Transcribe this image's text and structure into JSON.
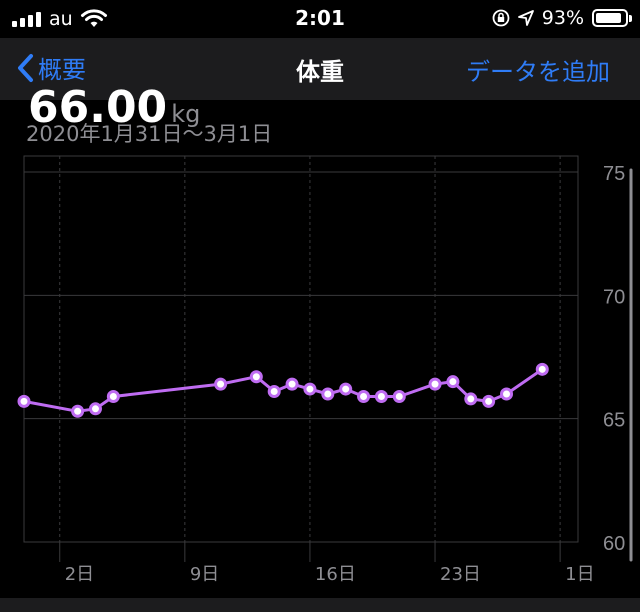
{
  "status_bar": {
    "carrier": "au",
    "time": "2:01",
    "battery_percent": "93%",
    "icons": [
      "signal-icon",
      "wifi-icon",
      "lock-rotation-icon",
      "location-icon",
      "battery-icon"
    ]
  },
  "nav": {
    "back_label": "概要",
    "title": "体重",
    "action_label": "データを追加"
  },
  "summary": {
    "value": "66.00",
    "unit": "kg",
    "date_range": "2020年1月31日〜3月1日"
  },
  "colors": {
    "accent": "#2f7cf6",
    "series": "#bf6cf2",
    "background": "#000000",
    "grid": "#3a3a3c",
    "secondary_text": "#8e8e93"
  },
  "chart_data": {
    "type": "line",
    "y_ticks": [
      "75",
      "70",
      "65",
      "60"
    ],
    "ylim": [
      60,
      75
    ],
    "x_range": [
      "2020-01-31",
      "2020-03-02"
    ],
    "x_tick_labels": [
      {
        "date": "2020-02-02",
        "label": "2日"
      },
      {
        "date": "2020-02-09",
        "label": "9日"
      },
      {
        "date": "2020-02-16",
        "label": "16日"
      },
      {
        "date": "2020-02-23",
        "label": "23日"
      },
      {
        "date": "2020-03-01",
        "label": "1日"
      }
    ],
    "grid": true,
    "series": [
      {
        "values": [
          {
            "date": "2020-01-31",
            "y": 65.7
          },
          {
            "date": "2020-02-03",
            "y": 65.3
          },
          {
            "date": "2020-02-04",
            "y": 65.4
          },
          {
            "date": "2020-02-05",
            "y": 65.9
          },
          {
            "date": "2020-02-11",
            "y": 66.4
          },
          {
            "date": "2020-02-13",
            "y": 66.7
          },
          {
            "date": "2020-02-14",
            "y": 66.1
          },
          {
            "date": "2020-02-15",
            "y": 66.4
          },
          {
            "date": "2020-02-16",
            "y": 66.2
          },
          {
            "date": "2020-02-17",
            "y": 66.0
          },
          {
            "date": "2020-02-18",
            "y": 66.2
          },
          {
            "date": "2020-02-19",
            "y": 65.9
          },
          {
            "date": "2020-02-20",
            "y": 65.9
          },
          {
            "date": "2020-02-21",
            "y": 65.9
          },
          {
            "date": "2020-02-23",
            "y": 66.4
          },
          {
            "date": "2020-02-24",
            "y": 66.5
          },
          {
            "date": "2020-02-25",
            "y": 65.8
          },
          {
            "date": "2020-02-26",
            "y": 65.7
          },
          {
            "date": "2020-02-27",
            "y": 66.0
          },
          {
            "date": "2020-02-29",
            "y": 67.0
          }
        ]
      }
    ]
  }
}
